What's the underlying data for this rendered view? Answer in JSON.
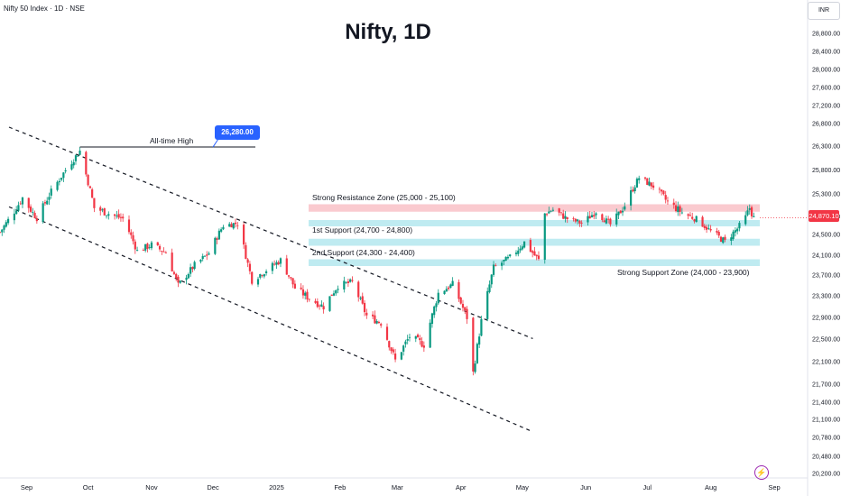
{
  "symbol_line": "Nifty 50 Index · 1D · NSE",
  "currency": "INR",
  "current_price_label": "24,870.10",
  "colors": {
    "up": "#089981",
    "down": "#f23645",
    "resistance": "#f8b8bf",
    "support": "#a9e4ec",
    "label_blue": "#2962ff"
  },
  "icons": [
    "bolt-icon"
  ],
  "chart_data": {
    "type": "candlestick",
    "title": "Nifty, 1D",
    "y_ticks": [
      28800,
      28400,
      28000,
      27600,
      27200,
      26800,
      26300,
      25800,
      25300,
      24900,
      24500,
      24100,
      23700,
      23300,
      22900,
      22500,
      22100,
      21700,
      21400,
      21100,
      20780,
      20480,
      20200
    ],
    "y_tick_labels": [
      "28,800.00",
      "28,400.00",
      "28,000.00",
      "27,600.00",
      "27,200.00",
      "26,800.00",
      "26,300.00",
      "25,800.00",
      "25,300.00",
      "24,900.00",
      "24,500.00",
      "24,100.00",
      "23,700.00",
      "23,300.00",
      "22,900.00",
      "22,500.00",
      "22,100.00",
      "21,700.00",
      "21,400.00",
      "21,100.00",
      "20,780.00",
      "20,480.00",
      "20,200.00"
    ],
    "x_ticks": [
      "Sep",
      "Oct",
      "Nov",
      "Dec",
      "2025",
      "Feb",
      "Mar",
      "Apr",
      "May",
      "Jun",
      "Jul",
      "Aug",
      "Sep"
    ],
    "x_range": [
      "2024-08-19",
      "2025-09-01"
    ],
    "close_path": [
      [
        "2024-08-19",
        24550
      ],
      [
        "2024-08-23",
        24820
      ],
      [
        "2024-08-30",
        25230
      ],
      [
        "2024-09-06",
        24860
      ],
      [
        "2024-09-13",
        25350
      ],
      [
        "2024-09-20",
        25800
      ],
      [
        "2024-09-27",
        26200
      ],
      [
        "2024-10-04",
        25050
      ],
      [
        "2024-10-11",
        24950
      ],
      [
        "2024-10-18",
        24850
      ],
      [
        "2024-10-25",
        24180
      ],
      [
        "2024-11-01",
        24300
      ],
      [
        "2024-11-08",
        24150
      ],
      [
        "2024-11-14",
        23500
      ],
      [
        "2024-11-22",
        23900
      ],
      [
        "2024-11-29",
        24140
      ],
      [
        "2024-12-06",
        24700
      ],
      [
        "2024-12-13",
        24750
      ],
      [
        "2024-12-20",
        23600
      ],
      [
        "2024-12-27",
        23800
      ],
      [
        "2025-01-03",
        24000
      ],
      [
        "2025-01-10",
        23450
      ],
      [
        "2025-01-17",
        23250
      ],
      [
        "2025-01-24",
        23100
      ],
      [
        "2025-01-31",
        23500
      ],
      [
        "2025-02-07",
        23560
      ],
      [
        "2025-02-14",
        22930
      ],
      [
        "2025-02-21",
        22800
      ],
      [
        "2025-02-28",
        22120
      ],
      [
        "2025-03-07",
        22550
      ],
      [
        "2025-03-14",
        22400
      ],
      [
        "2025-03-21",
        23350
      ],
      [
        "2025-03-28",
        23520
      ],
      [
        "2025-04-04",
        22900
      ],
      [
        "2025-04-07",
        21900
      ],
      [
        "2025-04-11",
        22830
      ],
      [
        "2025-04-17",
        23850
      ],
      [
        "2025-04-25",
        24050
      ],
      [
        "2025-05-02",
        24350
      ],
      [
        "2025-05-09",
        24000
      ],
      [
        "2025-05-12",
        24950
      ],
      [
        "2025-05-16",
        25020
      ],
      [
        "2025-05-23",
        24850
      ],
      [
        "2025-05-30",
        24750
      ],
      [
        "2025-06-06",
        25000
      ],
      [
        "2025-06-13",
        24720
      ],
      [
        "2025-06-20",
        25100
      ],
      [
        "2025-06-27",
        25640
      ],
      [
        "2025-07-04",
        25460
      ],
      [
        "2025-07-11",
        25150
      ],
      [
        "2025-07-18",
        24970
      ],
      [
        "2025-07-25",
        24840
      ],
      [
        "2025-08-01",
        24570
      ],
      [
        "2025-08-08",
        24360
      ],
      [
        "2025-08-14",
        24630
      ],
      [
        "2025-08-18",
        24880
      ],
      [
        "2025-08-20",
        25050
      ],
      [
        "2025-08-22",
        24870
      ]
    ],
    "all_time_high": {
      "label": "All-time High",
      "value": 26280.0,
      "value_label": "26,280.00",
      "date": "2024-09-27"
    },
    "zones": [
      {
        "label": "Strong Resistance Zone (25,000 - 25,100)",
        "low": 25000,
        "high": 25100,
        "kind": "resistance"
      },
      {
        "label": "1st Support (24,700 - 24,800)",
        "low": 24700,
        "high": 24800,
        "kind": "support"
      },
      {
        "label": "2nd Support (24,300 - 24,400)",
        "low": 24300,
        "high": 24400,
        "kind": "support"
      },
      {
        "label": "Strong Support Zone (24,000 - 23,900)",
        "low": 23900,
        "high": 24000,
        "kind": "support"
      }
    ],
    "trendlines": [
      {
        "name": "channel-upper",
        "from": [
          "2024-08-19",
          26720
        ],
        "to": [
          "2025-05-07",
          22510
        ]
      },
      {
        "name": "channel-lower",
        "from": [
          "2024-08-19",
          25070
        ],
        "to": [
          "2025-05-07",
          20880
        ]
      }
    ],
    "last_price": 24870.1
  }
}
